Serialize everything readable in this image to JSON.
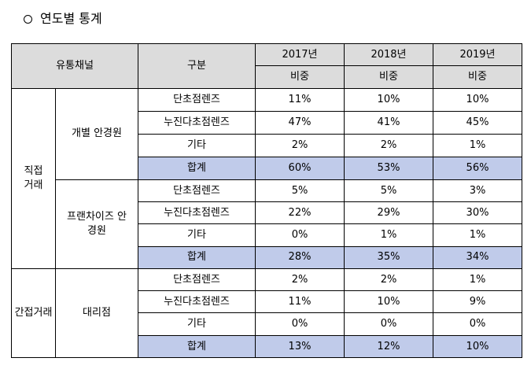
{
  "heading": {
    "title": "연도별 통계"
  },
  "table": {
    "header": {
      "channel": "유통채널",
      "category": "구분",
      "years": [
        "2017년",
        "2018년",
        "2019년"
      ],
      "share_label": "비중"
    },
    "groups": [
      {
        "label": "직접거래",
        "subgroups": [
          {
            "label": "개별 안경원",
            "rows": [
              {
                "category": "단초점렌즈",
                "values": [
                  "11%",
                  "10%",
                  "10%"
                ]
              },
              {
                "category": "누진다초점렌즈",
                "values": [
                  "47%",
                  "41%",
                  "45%"
                ]
              },
              {
                "category": "기타",
                "values": [
                  "2%",
                  "2%",
                  "1%"
                ]
              },
              {
                "category": "합계",
                "values": [
                  "60%",
                  "53%",
                  "56%"
                ]
              }
            ]
          },
          {
            "label": "프랜차이즈 안경원",
            "rows": [
              {
                "category": "단초점렌즈",
                "values": [
                  "5%",
                  "5%",
                  "3%"
                ]
              },
              {
                "category": "누진다초점렌즈",
                "values": [
                  "22%",
                  "29%",
                  "30%"
                ]
              },
              {
                "category": "기타",
                "values": [
                  "0%",
                  "1%",
                  "1%"
                ]
              },
              {
                "category": "합계",
                "values": [
                  "28%",
                  "35%",
                  "34%"
                ]
              }
            ]
          }
        ]
      },
      {
        "label": "간접거래",
        "subgroups": [
          {
            "label": "대리점",
            "rows": [
              {
                "category": "단초점렌즈",
                "values": [
                  "2%",
                  "2%",
                  "1%"
                ]
              },
              {
                "category": "누진다초점렌즈",
                "values": [
                  "11%",
                  "10%",
                  "9%"
                ]
              },
              {
                "category": "기타",
                "values": [
                  "0%",
                  "0%",
                  "0%"
                ]
              },
              {
                "category": "합계",
                "values": [
                  "13%",
                  "12%",
                  "10%"
                ]
              }
            ]
          }
        ]
      }
    ]
  }
}
